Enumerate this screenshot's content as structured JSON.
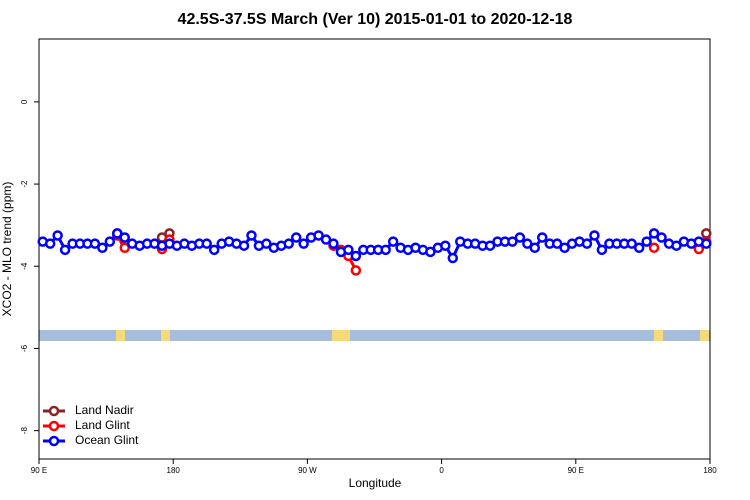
{
  "chart_data": {
    "type": "line",
    "title": "42.5S-37.5S March (Ver 10)   2015-01-01 to 2020-12-18",
    "xlabel": "Longitude",
    "ylabel": "XCO2 - MLO trend (ppm)",
    "x": [
      92.5,
      97.5,
      102.5,
      107.5,
      112.5,
      117.5,
      122.5,
      127.5,
      132.5,
      137.5,
      142.5,
      147.5,
      152.5,
      157.5,
      162.5,
      167.5,
      172.5,
      177.5,
      182.5,
      187.5,
      192.5,
      197.5,
      202.5,
      207.5,
      212.5,
      217.5,
      222.5,
      227.5,
      232.5,
      237.5,
      242.5,
      247.5,
      252.5,
      257.5,
      262.5,
      267.5,
      272.5,
      277.5,
      282.5,
      287.5,
      292.5,
      297.5,
      302.5,
      307.5,
      312.5,
      317.5,
      322.5,
      327.5,
      332.5,
      337.5,
      342.5,
      347.5,
      352.5,
      357.5,
      362.5,
      367.5,
      372.5,
      377.5,
      382.5,
      387.5,
      392.5,
      397.5,
      402.5,
      407.5,
      412.5,
      417.5,
      422.5,
      427.5,
      432.5,
      437.5,
      442.5,
      447.5,
      452.5,
      457.5,
      462.5,
      467.5,
      472.5,
      477.5,
      482.5,
      487.5,
      492.5,
      497.5,
      502.5,
      507.5,
      512.5,
      517.5,
      522.5,
      527.5,
      532.5,
      537.5
    ],
    "series": [
      {
        "name": "Land Nadir",
        "color": "#8b2323",
        "values": [
          null,
          null,
          null,
          null,
          null,
          null,
          null,
          null,
          null,
          null,
          -3.2,
          -3.4,
          null,
          null,
          null,
          null,
          -3.3,
          -3.2,
          null,
          null,
          null,
          null,
          null,
          null,
          null,
          null,
          null,
          null,
          null,
          null,
          null,
          null,
          null,
          null,
          null,
          null,
          null,
          null,
          null,
          null,
          null,
          null,
          null,
          null,
          null,
          null,
          null,
          null,
          null,
          null,
          null,
          null,
          null,
          null,
          null,
          null,
          null,
          null,
          null,
          null,
          null,
          null,
          null,
          null,
          null,
          null,
          null,
          null,
          null,
          null,
          null,
          null,
          null,
          null,
          null,
          null,
          null,
          null,
          null,
          null,
          null,
          null,
          null,
          null,
          null,
          null,
          null,
          null,
          -3.55,
          -3.2
        ]
      },
      {
        "name": "Land Glint",
        "color": "#ff0000",
        "values": [
          null,
          null,
          null,
          null,
          null,
          null,
          null,
          null,
          null,
          null,
          -3.25,
          -3.55,
          null,
          null,
          null,
          null,
          -3.58,
          -3.35,
          null,
          null,
          null,
          null,
          null,
          null,
          null,
          null,
          null,
          null,
          null,
          null,
          null,
          null,
          null,
          null,
          null,
          null,
          null,
          null,
          null,
          -3.5,
          -3.6,
          -3.75,
          -4.1,
          null,
          null,
          null,
          null,
          null,
          null,
          null,
          null,
          null,
          null,
          null,
          null,
          null,
          null,
          null,
          null,
          null,
          null,
          null,
          null,
          null,
          null,
          null,
          null,
          null,
          null,
          null,
          null,
          null,
          null,
          null,
          null,
          null,
          null,
          null,
          null,
          null,
          null,
          null,
          -3.55,
          null,
          null,
          null,
          null,
          null,
          -3.58,
          -3.4
        ]
      },
      {
        "name": "Ocean Glint",
        "color": "#0000ff",
        "values": [
          -3.4,
          -3.45,
          -3.25,
          -3.6,
          -3.45,
          -3.45,
          -3.45,
          -3.45,
          -3.55,
          -3.4,
          -3.2,
          -3.3,
          -3.45,
          -3.5,
          -3.45,
          -3.45,
          -3.5,
          -3.45,
          -3.5,
          -3.45,
          -3.5,
          -3.45,
          -3.45,
          -3.6,
          -3.45,
          -3.4,
          -3.45,
          -3.5,
          -3.25,
          -3.5,
          -3.45,
          -3.55,
          -3.5,
          -3.45,
          -3.3,
          -3.45,
          -3.3,
          -3.25,
          -3.35,
          -3.45,
          -3.65,
          -3.6,
          -3.75,
          -3.6,
          -3.6,
          -3.6,
          -3.6,
          -3.4,
          -3.55,
          -3.6,
          -3.55,
          -3.6,
          -3.65,
          -3.55,
          -3.5,
          -3.8,
          -3.4,
          -3.45,
          -3.45,
          -3.5,
          -3.5,
          -3.4,
          -3.4,
          -3.4,
          -3.3,
          -3.45,
          -3.55,
          -3.3,
          -3.45,
          -3.45,
          -3.55,
          -3.45,
          -3.4,
          -3.45,
          -3.25,
          -3.6,
          -3.45,
          -3.45,
          -3.45,
          -3.45,
          -3.55,
          -3.4,
          -3.2,
          -3.3,
          -3.45,
          -3.5,
          -3.4,
          -3.45,
          -3.4,
          -3.45
        ]
      }
    ],
    "xlim": [
      90,
      540
    ],
    "xticks": [
      {
        "value": 90,
        "label": "90 E"
      },
      180,
      {
        "value": 270,
        "label": "90 W"
      },
      {
        "value": 360,
        "label": "0"
      },
      {
        "value": 450,
        "label": "90 E"
      },
      {
        "value": 540,
        "label": "180"
      }
    ],
    "ylim": [
      -8.69,
      1.53
    ],
    "yticks": [
      0,
      -2,
      -4,
      -6,
      -8
    ],
    "legend": "bottomleft"
  }
}
